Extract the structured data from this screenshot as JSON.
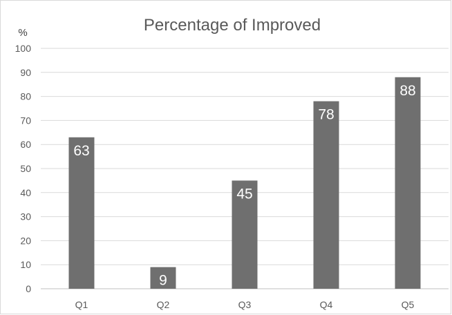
{
  "chart_data": {
    "type": "bar",
    "title": "Percentage of Improved",
    "unit_label": "%",
    "categories": [
      "Q1",
      "Q2",
      "Q3",
      "Q4",
      "Q5"
    ],
    "values": [
      63,
      9,
      45,
      78,
      88
    ],
    "ylim": [
      0,
      100
    ],
    "yticks": [
      0,
      10,
      20,
      30,
      40,
      50,
      60,
      70,
      80,
      90,
      100
    ],
    "grid": true,
    "legend": "none",
    "bar_color": "#6f6f6f",
    "data_label_color": "#ffffff"
  }
}
